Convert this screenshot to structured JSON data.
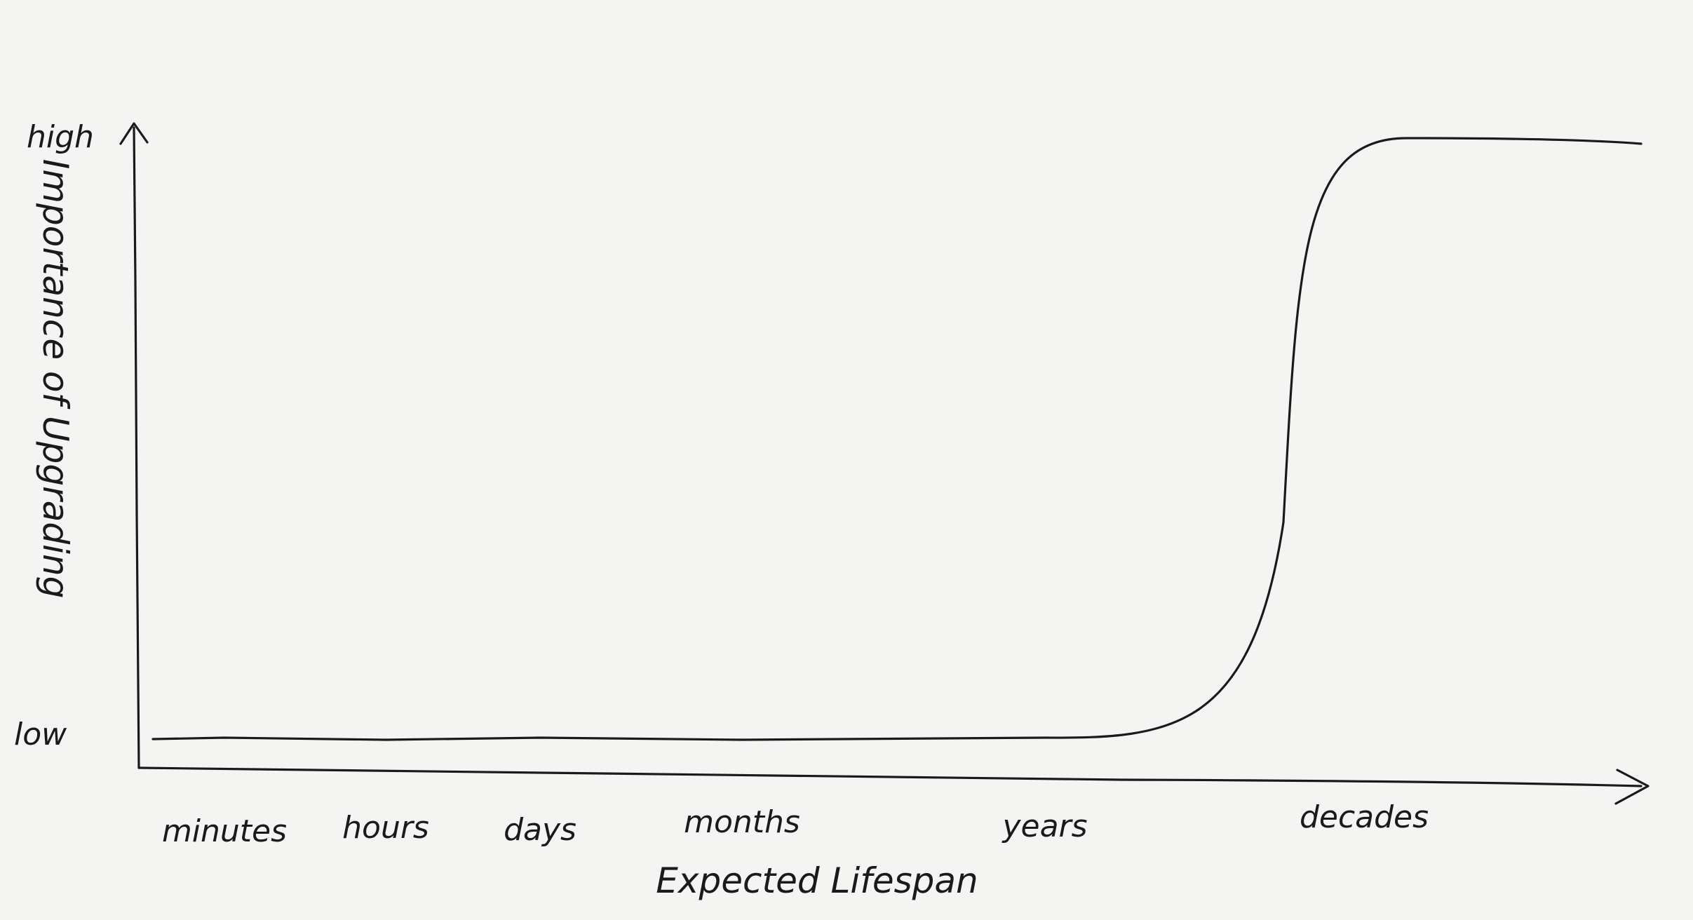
{
  "chart_data": {
    "type": "line",
    "title": "",
    "xlabel": "Expected Lifespan",
    "ylabel": "Importance of Upgrading",
    "categories": [
      "minutes",
      "hours",
      "days",
      "months",
      "years",
      "decades"
    ],
    "y_ticks": [
      "low",
      "high"
    ],
    "grid": false,
    "legend": "none",
    "series": [
      {
        "x": [
          "minutes",
          "hours",
          "days",
          "months",
          "years",
          "decades"
        ],
        "y": [
          "low",
          "low",
          "low",
          "low",
          "low",
          "high"
        ]
      }
    ]
  }
}
